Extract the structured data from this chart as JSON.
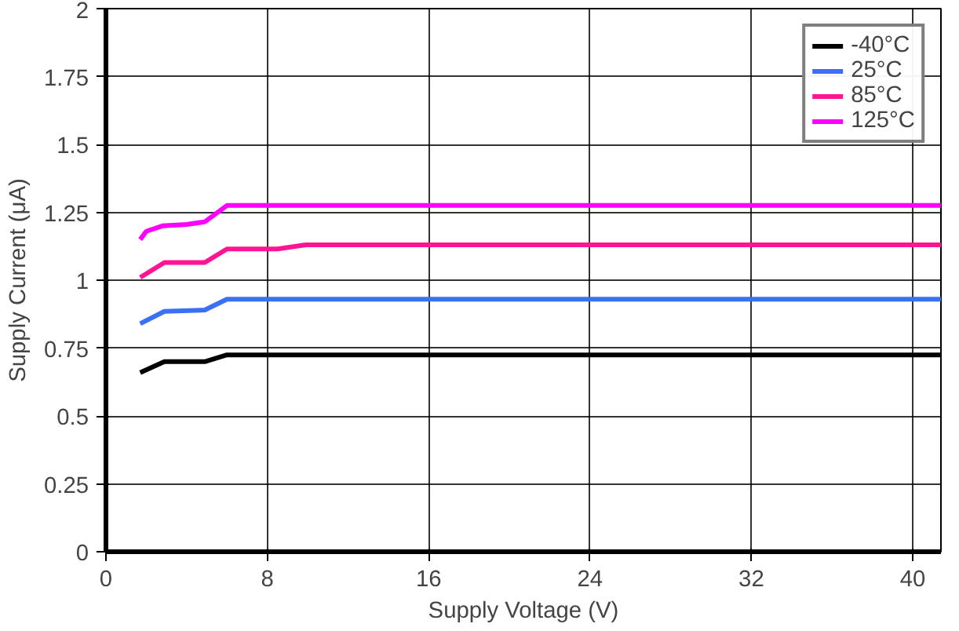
{
  "chart_data": {
    "type": "line",
    "xlabel": "Supply Voltage (V)",
    "ylabel": "Supply Current (μA)",
    "xlim": [
      0,
      41.4
    ],
    "ylim": [
      0,
      2
    ],
    "xticks": [
      0,
      8,
      16,
      24,
      32,
      40
    ],
    "yticks": [
      0,
      0.25,
      0.5,
      0.75,
      1,
      1.25,
      1.5,
      1.75,
      2
    ],
    "grid": true,
    "legend": "top right",
    "line_style": "solid",
    "series": [
      {
        "name": "-40°C",
        "color": "#000000",
        "x": [
          1.7,
          2.9,
          4.9,
          6.0,
          41.4
        ],
        "values": [
          0.66,
          0.7,
          0.7,
          0.725,
          0.725
        ]
      },
      {
        "name": "25°C",
        "color": "#3a6ff7",
        "x": [
          1.7,
          2.9,
          4.9,
          6.0,
          41.4
        ],
        "values": [
          0.84,
          0.885,
          0.89,
          0.93,
          0.93
        ]
      },
      {
        "name": "85°C",
        "color": "#ff1493",
        "x": [
          1.7,
          2.9,
          4.9,
          6.0,
          8.5,
          9.9,
          41.4
        ],
        "values": [
          1.01,
          1.065,
          1.065,
          1.115,
          1.115,
          1.13,
          1.13
        ]
      },
      {
        "name": "125°C",
        "color": "#ff00ff",
        "x": [
          1.7,
          2.0,
          2.8,
          4.0,
          4.9,
          6.0,
          41.4
        ],
        "values": [
          1.15,
          1.18,
          1.2,
          1.205,
          1.215,
          1.275,
          1.275
        ]
      }
    ]
  }
}
